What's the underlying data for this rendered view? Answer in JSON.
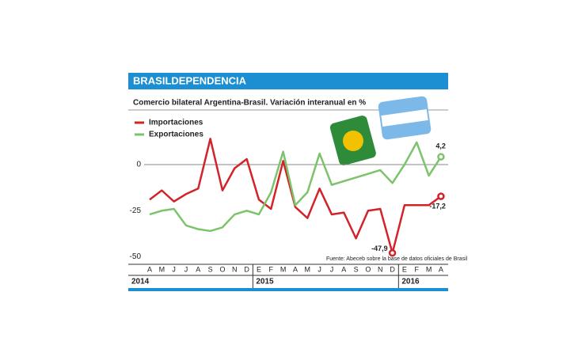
{
  "chart_data": {
    "type": "line",
    "title": "BRASILDEPENDENCIA",
    "subtitle": "Comercio bilateral Argentina-Brasil. Variación interanual en %",
    "source": "Fuente: Abeceb sobre la base de datos oficiales de Brasil",
    "categories": [
      "A",
      "M",
      "J",
      "J",
      "A",
      "S",
      "O",
      "N",
      "D",
      "E",
      "F",
      "M",
      "A",
      "M",
      "J",
      "J",
      "A",
      "S",
      "O",
      "N",
      "D",
      "E",
      "F",
      "M",
      "A"
    ],
    "years": [
      "2014",
      "2015",
      "2016"
    ],
    "ylim": [
      -50,
      30
    ],
    "yticks": [
      -50,
      -25,
      0
    ],
    "series": [
      {
        "name": "Importaciones",
        "color": "#d3232a",
        "values": [
          -19,
          -14,
          -20,
          -16,
          -13,
          14,
          -14,
          -2,
          3,
          -19,
          -24,
          2,
          -23,
          -29,
          -13,
          -27,
          -26,
          -40,
          -25,
          -24,
          -47.9,
          -22,
          -22,
          -22,
          -17.2
        ],
        "value_labels": [
          null,
          null,
          null,
          null,
          null,
          null,
          null,
          null,
          null,
          null,
          null,
          null,
          null,
          null,
          null,
          null,
          null,
          null,
          null,
          null,
          "-47,9",
          null,
          null,
          null,
          "-17,2"
        ]
      },
      {
        "name": "Exportaciones",
        "color": "#7cc36b",
        "values": [
          -27,
          -25,
          -24,
          -33,
          -35,
          -36,
          -34,
          -27,
          -25,
          -27,
          -15,
          7,
          -22,
          -15,
          6,
          -11,
          -9,
          -7,
          -5,
          -3,
          -10,
          0,
          12,
          -6,
          4.2
        ],
        "value_labels": [
          null,
          null,
          null,
          null,
          null,
          null,
          null,
          null,
          null,
          null,
          null,
          null,
          null,
          null,
          null,
          null,
          null,
          null,
          null,
          null,
          null,
          null,
          null,
          null,
          "4,2"
        ]
      }
    ]
  }
}
